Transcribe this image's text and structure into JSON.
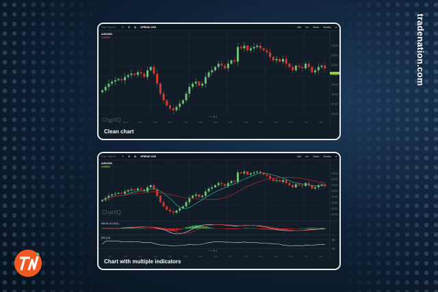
{
  "brand": {
    "site": "tradenation.com",
    "logo_text": "TN",
    "logo_color": "#f05a22",
    "accent": "#3ecf8e"
  },
  "toolbar": {
    "symbol_placeholder": "Enter Symbol",
    "spread": "SPREAD USD",
    "items": [
      "Mid",
      "1m",
      "Views",
      "Studies"
    ]
  },
  "panels": [
    {
      "caption": "Clean chart",
      "symbol": "AUD/USD",
      "price": "0.65566",
      "price_color": "#e0312d",
      "watermark": "ChartIQ"
    },
    {
      "caption": "Chart with multiple indicators",
      "symbol": "AUD/USD",
      "price": "0.65564",
      "price_color": "#8fd13a",
      "watermark": "ChartIQ",
      "studies": [
        "MACD (12,26,9)",
        "RSI (14)"
      ]
    }
  ],
  "colors": {
    "up": "#6fbf73",
    "down": "#d63a2f",
    "ma_fast": "#2fb58a",
    "ma_slow": "#c0262d",
    "rsi": "#d8dde2"
  },
  "chart_data": {
    "type": "candlestick",
    "closes": [
      0.6465,
      0.647,
      0.6475,
      0.6478,
      0.648,
      0.6482,
      0.648,
      0.6485,
      0.6488,
      0.649,
      0.6488,
      0.6492,
      0.649,
      0.6485,
      0.6495,
      0.65,
      0.649,
      0.6475,
      0.646,
      0.645,
      0.6442,
      0.6438,
      0.6435,
      0.644,
      0.6445,
      0.645,
      0.646,
      0.647,
      0.6475,
      0.6478,
      0.6472,
      0.6475,
      0.6485,
      0.6492,
      0.6495,
      0.65,
      0.6505,
      0.6502,
      0.6498,
      0.6505,
      0.651,
      0.6508,
      0.653,
      0.6528,
      0.6532,
      0.6525,
      0.6528,
      0.653,
      0.6532,
      0.6528,
      0.6525,
      0.6522,
      0.6515,
      0.651,
      0.6512,
      0.6508,
      0.6512,
      0.6505,
      0.65,
      0.6495,
      0.6502,
      0.65,
      0.6498,
      0.6505,
      0.65,
      0.6492,
      0.6495,
      0.65,
      0.6502,
      0.6498
    ],
    "rsi_levels": [
      80,
      20
    ]
  }
}
